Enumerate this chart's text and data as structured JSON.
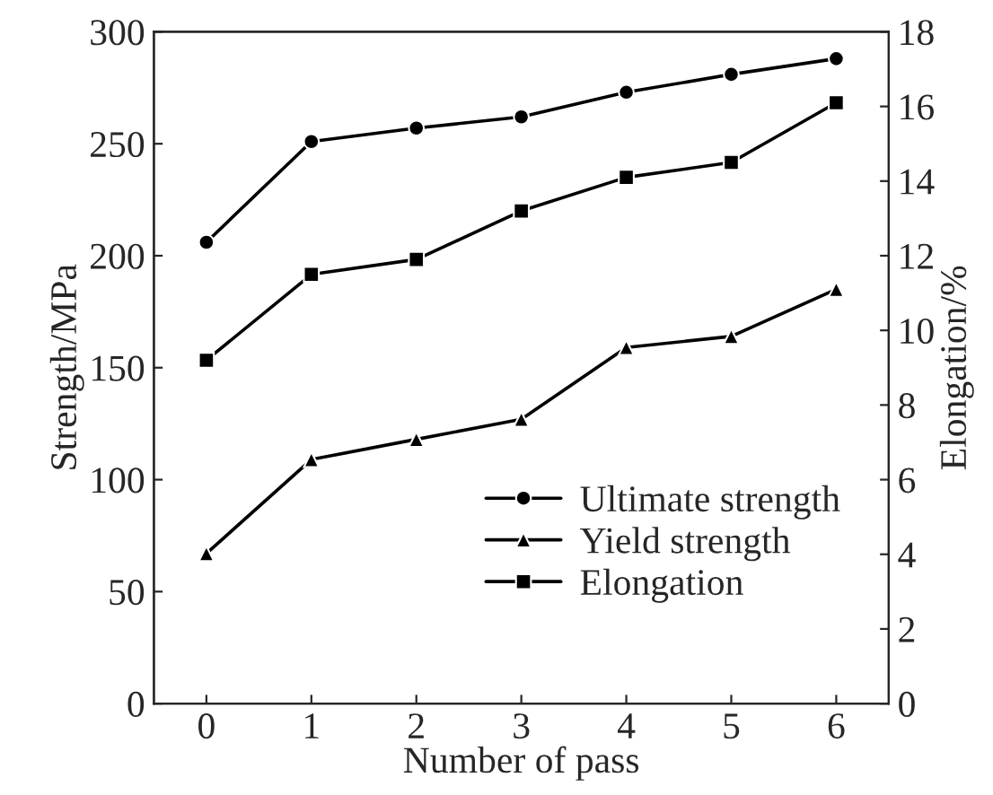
{
  "chart_data": {
    "type": "line",
    "xlabel": "Number of pass",
    "ylabel": "Strength/MPa",
    "y2label": "Elongation/%",
    "x": [
      0,
      1,
      2,
      3,
      4,
      5,
      6
    ],
    "xlim": [
      -0.5,
      6.5
    ],
    "xticks": [
      0,
      1,
      2,
      3,
      4,
      5,
      6
    ],
    "ylim": [
      0,
      300
    ],
    "yticks": [
      0,
      50,
      100,
      150,
      200,
      250,
      300
    ],
    "y2lim": [
      0,
      18
    ],
    "y2ticks": [
      0,
      2,
      4,
      6,
      8,
      10,
      12,
      14,
      16,
      18
    ],
    "grid": false,
    "legend": "bottom right",
    "line_style": "solid",
    "series": [
      {
        "name": "Ultimate strength",
        "color": "#000000",
        "marker": "circle",
        "values": [
          206,
          251,
          257,
          262,
          273,
          281,
          288
        ]
      },
      {
        "name": "Yield strength",
        "color": "#000000",
        "marker": "triangle",
        "values": [
          67,
          109,
          118,
          127,
          159,
          164,
          185
        ]
      },
      {
        "name": "Elongation",
        "color": "#000000",
        "marker": "square",
        "axis": "y2",
        "values": [
          9.2,
          11.5,
          11.9,
          13.2,
          14.1,
          14.5,
          16.1
        ]
      }
    ]
  }
}
